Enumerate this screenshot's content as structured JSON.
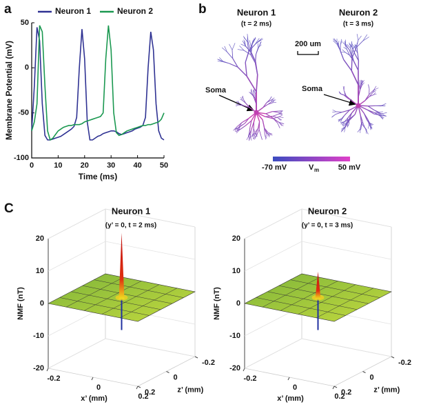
{
  "panel_labels": [
    "a",
    "b",
    "C"
  ],
  "chart_data": [
    {
      "type": "line",
      "xlabel": "Time (ms)",
      "ylabel": "Membrane Potential (mV)",
      "xlim": [
        0,
        50
      ],
      "ylim": [
        -100,
        50
      ],
      "xticks": [
        0,
        10,
        20,
        30,
        40,
        50
      ],
      "yticks": [
        -100,
        -50,
        0,
        50
      ],
      "x": [
        0,
        1,
        2,
        3,
        4,
        5,
        6,
        7,
        8,
        9,
        10,
        11,
        12,
        13,
        14,
        15,
        16,
        17,
        18,
        19,
        20,
        21,
        22,
        23,
        24,
        25,
        26,
        27,
        28,
        29,
        30,
        31,
        32,
        33,
        34,
        35,
        36,
        37,
        38,
        39,
        40,
        41,
        42,
        43,
        44,
        45,
        46,
        47,
        48,
        49,
        50
      ],
      "legend": "top",
      "series": [
        {
          "name": "Neuron 1",
          "color": "#2e3192",
          "values": [
            -70,
            -20,
            45,
            30,
            -40,
            -75,
            -80,
            -80,
            -79,
            -78,
            -77,
            -76,
            -74,
            -72,
            -70,
            -68,
            -65,
            -55,
            0,
            43,
            10,
            -60,
            -80,
            -80,
            -78,
            -76,
            -75,
            -73,
            -72,
            -71,
            -70,
            -70,
            -71,
            -73,
            -74,
            -73,
            -72,
            -71,
            -70,
            -68,
            -67,
            -66,
            -64,
            -55,
            0,
            40,
            20,
            -40,
            -70,
            -78,
            -80
          ]
        },
        {
          "name": "Neuron 2",
          "color": "#1a9850",
          "values": [
            -70,
            -60,
            -40,
            47,
            40,
            -20,
            -70,
            -80,
            -78,
            -74,
            -70,
            -68,
            -66,
            -65,
            -64,
            -64,
            -63,
            -63,
            -63,
            -62,
            -60,
            -59,
            -58,
            -57,
            -56,
            -55,
            -54,
            -50,
            10,
            47,
            20,
            -50,
            -72,
            -75,
            -74,
            -72,
            -70,
            -69,
            -68,
            -67,
            -66,
            -65,
            -64,
            -64,
            -63,
            -63,
            -62,
            -61,
            -60,
            -57,
            -50
          ]
        }
      ]
    },
    {
      "type": "surface",
      "title": "Neuron 1",
      "subtitle": "(y’ = 0, t = 2 ms)",
      "zlabel": "NMF (nT)",
      "xlabel": "x’ (mm)",
      "ylabel": "z’ (mm)",
      "zlim": [
        -20,
        20
      ],
      "zticks": [
        -20,
        -10,
        0,
        10,
        20
      ],
      "xlim": [
        -0.2,
        0.2
      ],
      "xticks": [
        -0.2,
        0,
        0.2
      ],
      "ylim": [
        -0.2,
        0.2
      ],
      "yticks": [
        -0.2,
        0,
        0.2
      ],
      "peak": 20,
      "trough": -10
    },
    {
      "type": "surface",
      "title": "Neuron 2",
      "subtitle": "(y’ = 0, t = 3 ms)",
      "zlabel": "NMF (nT)",
      "xlabel": "x’ (mm)",
      "ylabel": "z’ (mm)",
      "zlim": [
        -20,
        20
      ],
      "zticks": [
        -20,
        -10,
        0,
        10,
        20
      ],
      "xlim": [
        -0.2,
        0.2
      ],
      "xticks": [
        -0.2,
        0,
        0.2
      ],
      "ylim": [
        -0.2,
        0.2
      ],
      "yticks": [
        -0.2,
        0,
        0.2
      ],
      "peak": 8,
      "trough": -10
    }
  ],
  "panel_b": {
    "neuron1": {
      "title": "Neuron 1",
      "time": "(t = 2 ms)",
      "soma": "Soma"
    },
    "neuron2": {
      "title": "Neuron 2",
      "time": "(t = 3 ms)",
      "soma": "Soma"
    },
    "scale_bar": "200 um",
    "colorbar": {
      "min_label": "-70 mV",
      "symbol": "V",
      "subscript": "m",
      "max_label": "50 mV"
    }
  }
}
